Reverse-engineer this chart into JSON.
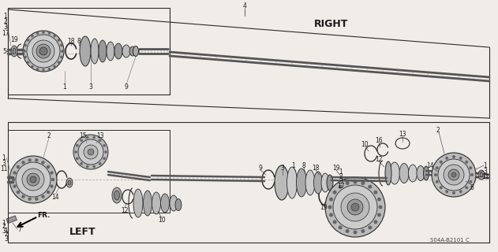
{
  "bg_color": "#f0ede8",
  "diagram_code": "S04A-B2101 C",
  "right_label": "RIGHT",
  "left_label": "LEFT",
  "fr_label": "FR.",
  "figsize": [
    6.31,
    3.2
  ],
  "dpi": 100,
  "line_color": "#2a2a2a",
  "text_color": "#1a1a1a",
  "gray_fill": "#888888",
  "dark_fill": "#555555",
  "light_gray": "#bbbbbb"
}
